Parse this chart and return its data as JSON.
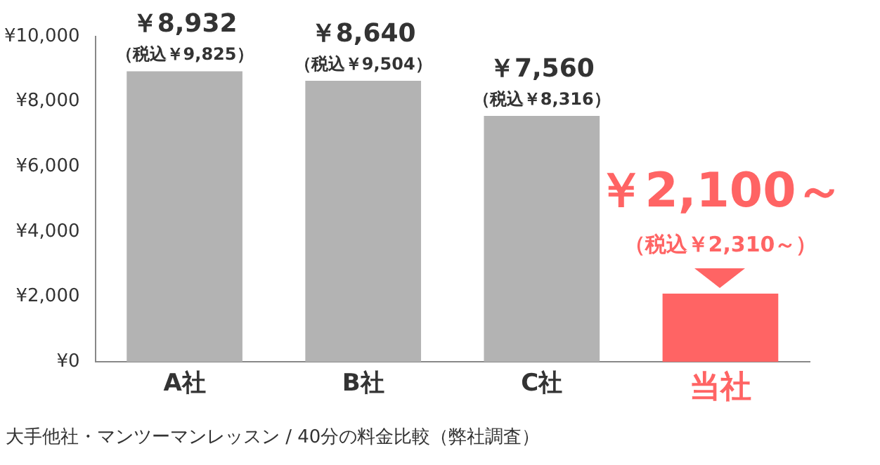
{
  "chart_data": {
    "type": "bar",
    "categories": [
      "A社",
      "B社",
      "C社",
      "当社"
    ],
    "values": [
      8932,
      8640,
      7560,
      2100
    ],
    "colors": [
      "#b3b3b3",
      "#b3b3b3",
      "#b3b3b3",
      "#ff6464"
    ],
    "value_labels": [
      "￥8,932",
      "￥8,640",
      "￥7,560",
      "￥2,100～"
    ],
    "ylim": [
      0,
      10000
    ],
    "yticks": [
      {
        "value": 0,
        "label": "¥0"
      },
      {
        "value": 2000,
        "label": "¥2,000"
      },
      {
        "value": 4000,
        "label": "¥4,000"
      },
      {
        "value": 6000,
        "label": "¥6,000"
      },
      {
        "value": 8000,
        "label": "¥8,000"
      },
      {
        "value": 10000,
        "label": "¥10,000"
      }
    ],
    "grid": false,
    "legend": false,
    "annotations": [
      {
        "text": "（税込￥9,825）",
        "x": "A社",
        "y": 8932
      },
      {
        "text": "（税込￥9,504）",
        "x": "B社",
        "y": 8640
      },
      {
        "text": "（税込￥8,316）",
        "x": "C社",
        "y": 7560
      },
      {
        "text": "（税込￥2,310～）",
        "x": "当社",
        "y": 2100
      },
      "大手他社・マンツーマンレッスン / 40分の料金比較（弊社調査）"
    ]
  }
}
